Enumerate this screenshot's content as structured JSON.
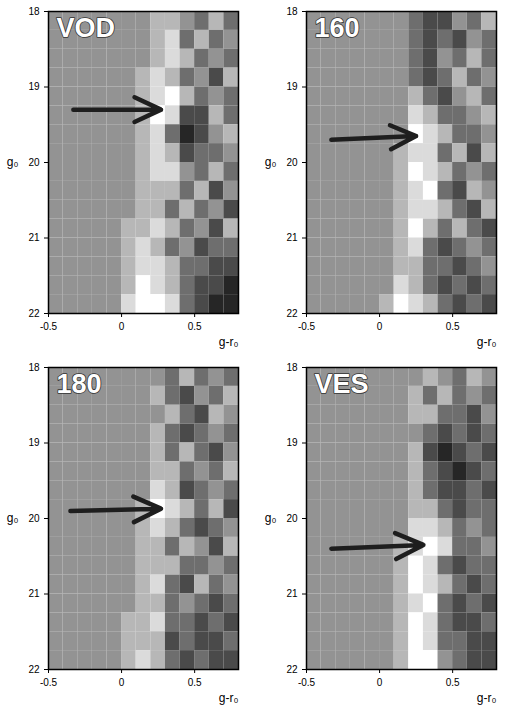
{
  "chart_data": [
    {
      "type": "heatmap",
      "title": "VOD",
      "x_label": "g-r₀",
      "y_label": "g₀",
      "xlim": [
        -0.5,
        0.8
      ],
      "ylim": [
        18,
        22
      ],
      "xticks": [
        -0.5,
        0,
        0.5
      ],
      "yticks": [
        18,
        19,
        20,
        21,
        22
      ],
      "xbins": [
        -0.5,
        -0.4,
        -0.3,
        -0.2,
        -0.1,
        0,
        0.1,
        0.2,
        0.3,
        0.4,
        0.5,
        0.6,
        0.7,
        0.8
      ],
      "ybins": [
        18,
        18.25,
        18.5,
        18.75,
        19,
        19.25,
        19.5,
        19.75,
        20,
        20.25,
        20.5,
        20.75,
        21,
        21.25,
        21.5,
        21.75,
        22
      ],
      "zlim": [
        -3,
        3
      ],
      "cells": [
        [
          0,
          0,
          0,
          0,
          0,
          0,
          0,
          1,
          1,
          0,
          -1,
          1,
          -1
        ],
        [
          0,
          0,
          0,
          0,
          0,
          0,
          0,
          1,
          2,
          -1,
          1,
          -1,
          0
        ],
        [
          0,
          0,
          0,
          0,
          0,
          0,
          0,
          1,
          2,
          1,
          -1,
          0,
          -1
        ],
        [
          0,
          0,
          0,
          0,
          0,
          0,
          1,
          2,
          1,
          -1,
          0,
          -2,
          1
        ],
        [
          0,
          0,
          0,
          0,
          0,
          0,
          1,
          2,
          3,
          1,
          -1,
          0,
          -1
        ],
        [
          0,
          0,
          0,
          0,
          0,
          0,
          1,
          3,
          2,
          -2,
          -2,
          1,
          -1
        ],
        [
          0,
          0,
          0,
          0,
          0,
          0,
          1,
          2,
          -1,
          -3,
          -2,
          0,
          1
        ],
        [
          0,
          0,
          0,
          0,
          0,
          0,
          1,
          2,
          1,
          -2,
          -1,
          -1,
          0
        ],
        [
          0,
          0,
          0,
          0,
          0,
          0,
          1,
          2,
          2,
          0,
          -1,
          1,
          -1
        ],
        [
          0,
          0,
          0,
          0,
          0,
          0,
          1,
          1,
          1,
          -1,
          1,
          -2,
          0
        ],
        [
          0,
          0,
          0,
          0,
          0,
          0,
          1,
          1,
          -1,
          1,
          -1,
          0,
          -2
        ],
        [
          0,
          0,
          0,
          0,
          0,
          1,
          1,
          2,
          1,
          -1,
          0,
          -2,
          1
        ],
        [
          0,
          0,
          0,
          0,
          0,
          1,
          2,
          1,
          -1,
          0,
          -2,
          -1,
          -1
        ],
        [
          0,
          0,
          0,
          0,
          0,
          1,
          2,
          2,
          1,
          -1,
          -1,
          -2,
          -2
        ],
        [
          0,
          0,
          0,
          0,
          0,
          1,
          3,
          2,
          1,
          -1,
          -2,
          -2,
          -3
        ],
        [
          0,
          0,
          0,
          0,
          0,
          2,
          3,
          3,
          2,
          -1,
          -2,
          -3,
          -3
        ]
      ],
      "arrow": {
        "x1": -0.33,
        "y1": 19.3,
        "x2": 0.27,
        "y2": 19.3
      }
    },
    {
      "type": "heatmap",
      "title": "160",
      "x_label": "g-r₀",
      "y_label": "g₀",
      "xlim": [
        -0.5,
        0.8
      ],
      "ylim": [
        18,
        22
      ],
      "xticks": [
        -0.5,
        0,
        0.5
      ],
      "yticks": [
        18,
        19,
        20,
        21,
        22
      ],
      "xbins": [
        -0.5,
        -0.4,
        -0.3,
        -0.2,
        -0.1,
        0,
        0.1,
        0.2,
        0.3,
        0.4,
        0.5,
        0.6,
        0.7,
        0.8
      ],
      "ybins": [
        18,
        18.25,
        18.5,
        18.75,
        19,
        19.25,
        19.5,
        19.75,
        20,
        20.25,
        20.5,
        20.75,
        21,
        21.25,
        21.5,
        21.75,
        22
      ],
      "zlim": [
        -3,
        3
      ],
      "cells": [
        [
          0,
          0,
          0,
          0,
          0,
          0,
          0,
          -1,
          -2,
          -2,
          0,
          -1,
          1
        ],
        [
          0,
          0,
          0,
          0,
          0,
          0,
          0,
          -1,
          -2,
          -1,
          -2,
          0,
          -1
        ],
        [
          0,
          0,
          0,
          0,
          0,
          0,
          0,
          -1,
          -2,
          0,
          -1,
          1,
          -1
        ],
        [
          0,
          0,
          0,
          0,
          0,
          0,
          0,
          -1,
          -2,
          -1,
          1,
          -1,
          0
        ],
        [
          0,
          0,
          0,
          0,
          0,
          0,
          0,
          1,
          -1,
          -2,
          0,
          1,
          -1
        ],
        [
          0,
          0,
          0,
          0,
          0,
          0,
          0,
          2,
          1,
          -1,
          -1,
          0,
          1
        ],
        [
          0,
          0,
          0,
          0,
          0,
          0,
          0,
          3,
          2,
          1,
          -1,
          -1,
          0
        ],
        [
          0,
          0,
          0,
          0,
          0,
          0,
          1,
          2,
          2,
          -1,
          1,
          -2,
          1
        ],
        [
          0,
          0,
          0,
          0,
          0,
          0,
          1,
          3,
          2,
          1,
          -1,
          0,
          -1
        ],
        [
          0,
          0,
          0,
          0,
          0,
          0,
          1,
          2,
          3,
          -1,
          -2,
          1,
          0
        ],
        [
          0,
          0,
          0,
          0,
          0,
          0,
          1,
          2,
          2,
          1,
          -1,
          -2,
          1
        ],
        [
          0,
          0,
          0,
          0,
          0,
          0,
          1,
          3,
          1,
          -1,
          1,
          -1,
          -2
        ],
        [
          0,
          0,
          0,
          0,
          0,
          0,
          1,
          2,
          -1,
          -2,
          -1,
          0,
          -1
        ],
        [
          0,
          0,
          0,
          0,
          0,
          0,
          1,
          1,
          -1,
          -1,
          -2,
          -1,
          0
        ],
        [
          0,
          0,
          0,
          0,
          0,
          0,
          2,
          1,
          -1,
          -2,
          -1,
          -2,
          -1
        ],
        [
          0,
          0,
          0,
          0,
          0,
          1,
          3,
          2,
          1,
          -1,
          -2,
          -1,
          -2
        ]
      ],
      "arrow": {
        "x1": -0.33,
        "y1": 19.7,
        "x2": 0.25,
        "y2": 19.65
      }
    },
    {
      "type": "heatmap",
      "title": "180",
      "x_label": "g-r₀",
      "y_label": "g₀",
      "xlim": [
        -0.5,
        0.8
      ],
      "ylim": [
        18,
        22
      ],
      "xticks": [
        -0.5,
        0,
        0.5
      ],
      "yticks": [
        18,
        19,
        20,
        21,
        22
      ],
      "xbins": [
        -0.5,
        -0.4,
        -0.3,
        -0.2,
        -0.1,
        0,
        0.1,
        0.2,
        0.3,
        0.4,
        0.5,
        0.6,
        0.7,
        0.8
      ],
      "ybins": [
        18,
        18.25,
        18.5,
        18.75,
        19,
        19.25,
        19.5,
        19.75,
        20,
        20.25,
        20.5,
        20.75,
        21,
        21.25,
        21.5,
        21.75,
        22
      ],
      "zlim": [
        -3,
        3
      ],
      "cells": [
        [
          0,
          0,
          0,
          0,
          0,
          0,
          0,
          0,
          -1,
          1,
          -1,
          0,
          -1
        ],
        [
          0,
          0,
          0,
          0,
          0,
          0,
          0,
          1,
          -1,
          -2,
          0,
          -1,
          1
        ],
        [
          0,
          0,
          0,
          0,
          0,
          0,
          0,
          0,
          1,
          -1,
          -2,
          1,
          0
        ],
        [
          0,
          0,
          0,
          0,
          0,
          0,
          0,
          1,
          -1,
          -2,
          -1,
          0,
          -1
        ],
        [
          0,
          0,
          0,
          0,
          0,
          0,
          0,
          1,
          -1,
          1,
          -1,
          -2,
          0
        ],
        [
          0,
          0,
          0,
          0,
          0,
          0,
          0,
          1,
          1,
          -1,
          0,
          -1,
          1
        ],
        [
          0,
          0,
          0,
          0,
          0,
          0,
          0,
          2,
          1,
          -2,
          -1,
          0,
          -1
        ],
        [
          0,
          0,
          0,
          0,
          0,
          0,
          1,
          3,
          2,
          1,
          -1,
          1,
          -2
        ],
        [
          0,
          0,
          0,
          0,
          0,
          0,
          1,
          2,
          1,
          -1,
          -2,
          -1,
          0
        ],
        [
          0,
          0,
          0,
          0,
          0,
          0,
          1,
          1,
          -1,
          1,
          0,
          -2,
          1
        ],
        [
          0,
          0,
          0,
          0,
          0,
          0,
          1,
          1,
          1,
          -1,
          -1,
          0,
          -1
        ],
        [
          0,
          0,
          0,
          0,
          0,
          0,
          1,
          2,
          -1,
          -2,
          1,
          -1,
          0
        ],
        [
          0,
          0,
          0,
          0,
          0,
          0,
          1,
          1,
          -1,
          0,
          -1,
          -2,
          -1
        ],
        [
          0,
          0,
          0,
          0,
          0,
          1,
          1,
          2,
          -1,
          -1,
          -2,
          -1,
          -2
        ],
        [
          0,
          0,
          0,
          0,
          0,
          1,
          1,
          1,
          -2,
          -1,
          -2,
          -2,
          -1
        ],
        [
          0,
          0,
          0,
          0,
          0,
          1,
          2,
          1,
          -1,
          -2,
          -1,
          -2,
          -2
        ]
      ],
      "arrow": {
        "x1": -0.35,
        "y1": 19.9,
        "x2": 0.27,
        "y2": 19.87
      }
    },
    {
      "type": "heatmap",
      "title": "VES",
      "x_label": "g-r₀",
      "y_label": "g₀",
      "xlim": [
        -0.5,
        0.8
      ],
      "ylim": [
        18,
        22
      ],
      "xticks": [
        -0.5,
        0,
        0.5
      ],
      "yticks": [
        18,
        19,
        20,
        21,
        22
      ],
      "xbins": [
        -0.5,
        -0.4,
        -0.3,
        -0.2,
        -0.1,
        0,
        0.1,
        0.2,
        0.3,
        0.4,
        0.5,
        0.6,
        0.7,
        0.8
      ],
      "ybins": [
        18,
        18.25,
        18.5,
        18.75,
        19,
        19.25,
        19.5,
        19.75,
        20,
        20.25,
        20.5,
        20.75,
        21,
        21.25,
        21.5,
        21.75,
        22
      ],
      "zlim": [
        -3,
        3
      ],
      "cells": [
        [
          0,
          0,
          0,
          0,
          0,
          0,
          0,
          0,
          1,
          0,
          -1,
          1,
          0
        ],
        [
          0,
          0,
          0,
          0,
          0,
          0,
          0,
          1,
          -1,
          1,
          -1,
          0,
          -1
        ],
        [
          0,
          0,
          0,
          0,
          0,
          0,
          0,
          1,
          1,
          -1,
          -1,
          -2,
          0
        ],
        [
          0,
          0,
          0,
          0,
          0,
          0,
          0,
          0,
          -1,
          -2,
          -1,
          -2,
          -1
        ],
        [
          0,
          0,
          0,
          0,
          0,
          0,
          0,
          1,
          -2,
          -3,
          -2,
          -1,
          -2
        ],
        [
          0,
          0,
          0,
          0,
          0,
          0,
          0,
          1,
          -1,
          -2,
          -3,
          -2,
          -1
        ],
        [
          0,
          0,
          0,
          0,
          0,
          0,
          0,
          1,
          -1,
          -2,
          -2,
          -1,
          -2
        ],
        [
          0,
          0,
          0,
          0,
          0,
          0,
          0,
          1,
          1,
          -1,
          -2,
          -1,
          -1
        ],
        [
          0,
          0,
          0,
          0,
          0,
          0,
          0,
          2,
          2,
          1,
          -1,
          0,
          -1
        ],
        [
          0,
          0,
          0,
          0,
          0,
          0,
          1,
          2,
          3,
          2,
          -1,
          -1,
          0
        ],
        [
          0,
          0,
          0,
          0,
          0,
          0,
          1,
          3,
          2,
          -1,
          -2,
          -1,
          -1
        ],
        [
          0,
          0,
          0,
          0,
          0,
          0,
          1,
          3,
          2,
          1,
          -1,
          -2,
          -1
        ],
        [
          0,
          0,
          0,
          0,
          0,
          0,
          1,
          2,
          3,
          -1,
          -2,
          -1,
          -2
        ],
        [
          0,
          0,
          0,
          0,
          0,
          0,
          1,
          3,
          2,
          -1,
          -2,
          -2,
          -1
        ],
        [
          0,
          0,
          0,
          0,
          0,
          0,
          1,
          3,
          2,
          -1,
          -1,
          -2,
          -2
        ],
        [
          0,
          0,
          0,
          0,
          0,
          0,
          1,
          3,
          3,
          0,
          -1,
          -2,
          -2
        ]
      ],
      "arrow": {
        "x1": -0.33,
        "y1": 20.4,
        "x2": 0.3,
        "y2": 20.35
      }
    }
  ]
}
